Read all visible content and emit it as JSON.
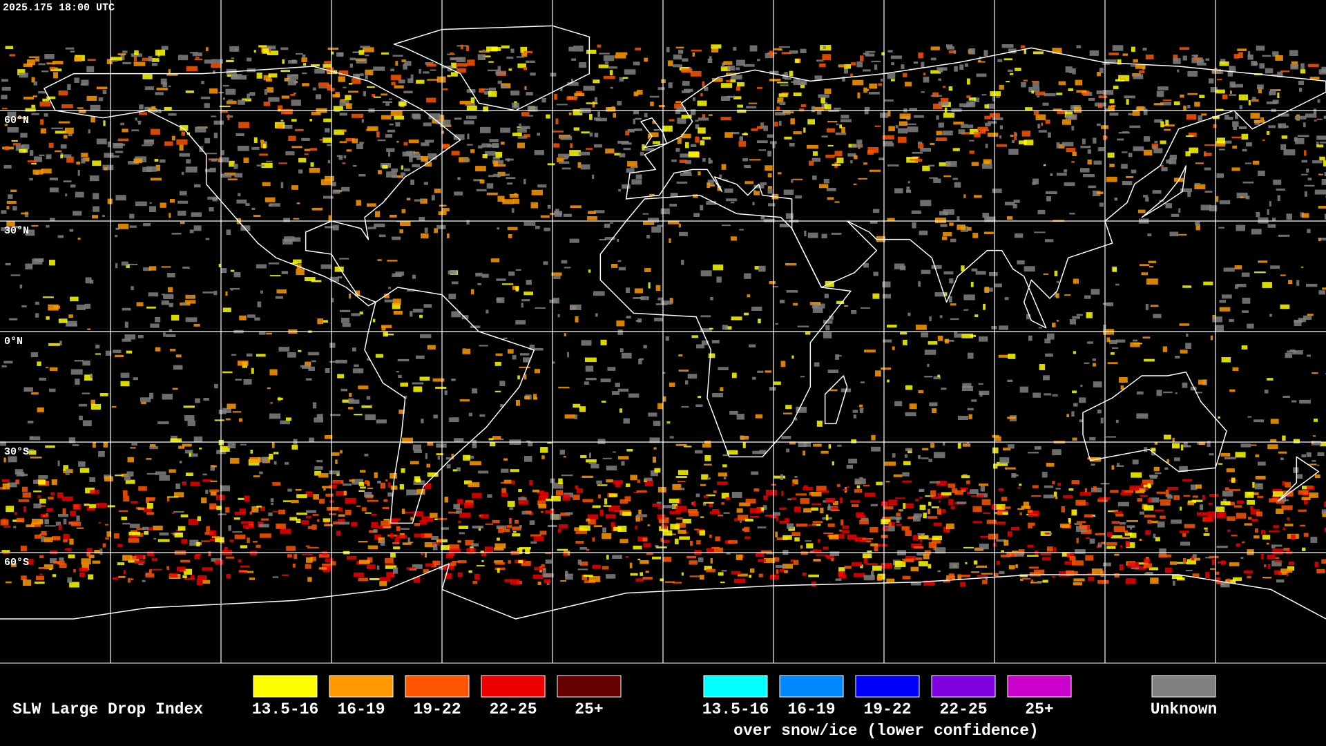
{
  "header": {
    "timestamp": "2025.175 18:00 UTC"
  },
  "latitude_labels": [
    "60°N",
    "30°N",
    "0°N",
    "30°S",
    "60°S"
  ],
  "legend": {
    "title": "SLW Large Drop Index",
    "liquid": [
      {
        "label": "13.5-16",
        "color": "#ffff00"
      },
      {
        "label": "16-19",
        "color": "#ff9900"
      },
      {
        "label": "19-22",
        "color": "#ff5500"
      },
      {
        "label": "22-25",
        "color": "#ee0000"
      },
      {
        "label": "25+",
        "color": "#660000"
      }
    ],
    "snow_ice": [
      {
        "label": "13.5-16",
        "color": "#00ffff"
      },
      {
        "label": "16-19",
        "color": "#0088ff"
      },
      {
        "label": "19-22",
        "color": "#0000ff"
      },
      {
        "label": "22-25",
        "color": "#7f00e0"
      },
      {
        "label": "25+",
        "color": "#cc00cc"
      }
    ],
    "snow_ice_note": "over snow/ice (lower confidence)",
    "unknown": {
      "label": "Unknown",
      "color": "#808080"
    }
  }
}
